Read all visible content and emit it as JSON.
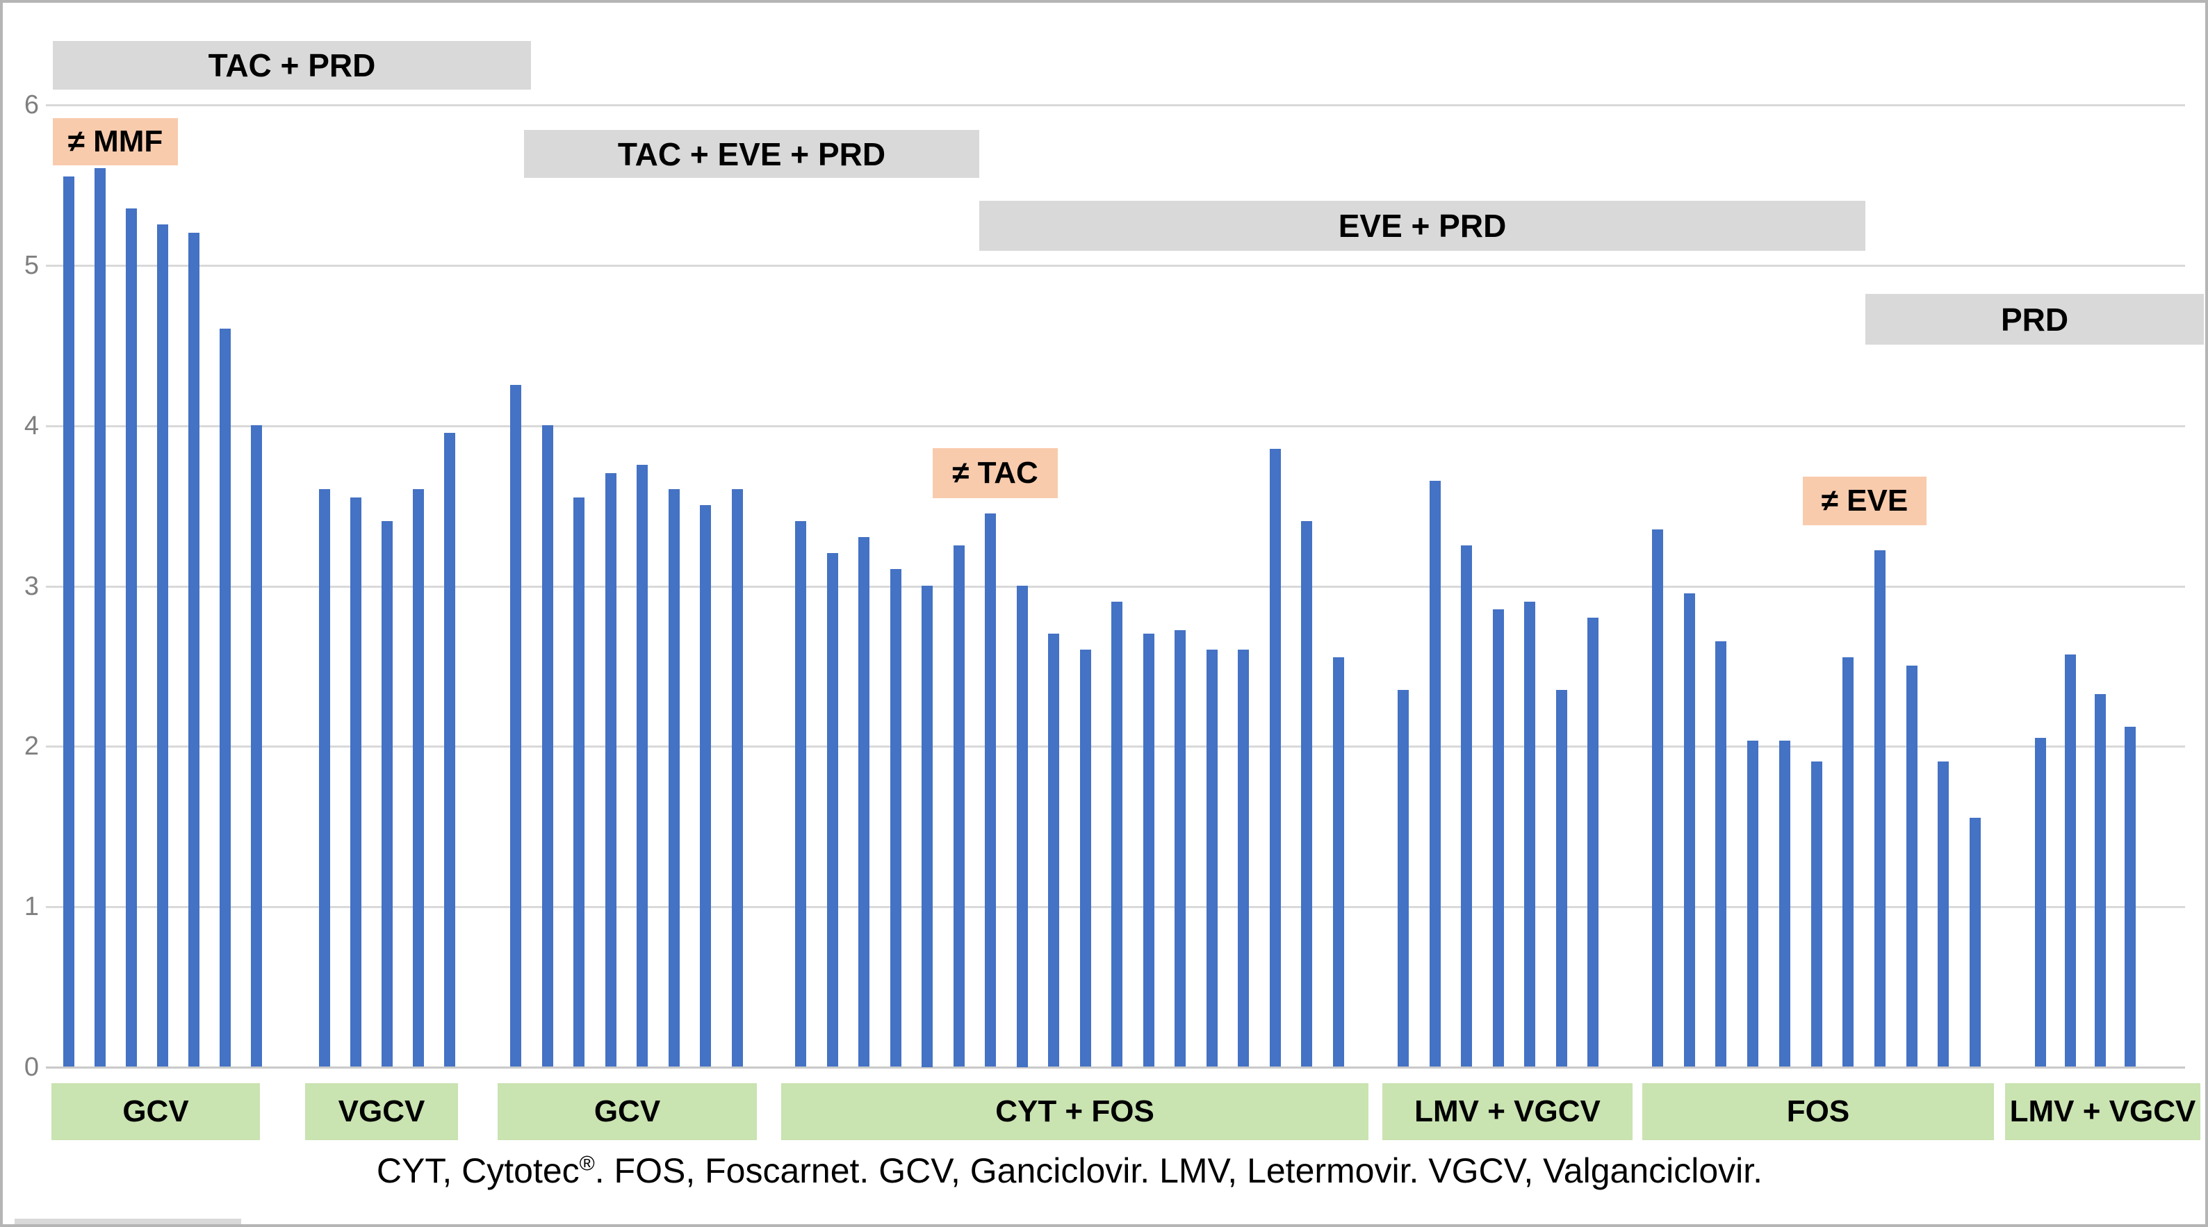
{
  "colors": {
    "bar": "#4472c4",
    "group_box": "#c9e3b1",
    "period_box": "#d9d9d9",
    "annotation_box": "#f8cbad",
    "gridline": "#d9d9d9",
    "axis_text": "#7f7f7f"
  },
  "chart_data": {
    "type": "bar",
    "title": "",
    "xlabel": "",
    "ylabel": "",
    "ylim": [
      0,
      6
    ],
    "yticks": [
      "6",
      "5",
      "4",
      "3",
      "2",
      "1",
      "0"
    ],
    "grid": true,
    "legend": "none",
    "bar_color": "#4472c4",
    "groups": [
      {
        "label": "GCV",
        "values": [
          5.55,
          5.6,
          5.35,
          5.25,
          5.2,
          4.6,
          4.0
        ]
      },
      {
        "label": "VGCV",
        "values": [
          3.6,
          3.55,
          3.4,
          3.6,
          3.95
        ]
      },
      {
        "label": "GCV",
        "values": [
          4.25,
          4.0,
          3.55,
          3.7,
          3.75,
          3.6,
          3.5,
          3.6
        ]
      },
      {
        "label": "CYT + FOS",
        "values": [
          3.4,
          3.2,
          3.3,
          3.1,
          3.0,
          3.25,
          3.45,
          3.0,
          2.7,
          2.6,
          2.9,
          2.7,
          2.72,
          2.6,
          2.6,
          3.85,
          3.4,
          2.55
        ]
      },
      {
        "label": "LMV + VGCV",
        "values": [
          2.35,
          3.65,
          3.25,
          2.85,
          2.9,
          2.35,
          2.8
        ]
      },
      {
        "label": "FOS",
        "values": [
          3.35,
          2.95,
          2.65,
          2.03,
          2.03,
          1.9,
          2.55,
          3.22,
          2.5,
          1.9,
          1.55
        ]
      },
      {
        "label": "LMV + VGCV",
        "values": [
          2.05,
          2.57,
          2.32,
          2.12
        ]
      }
    ],
    "immunosuppression_timeline": [
      {
        "label": "TAC + PRD"
      },
      {
        "label": "TAC + EVE + PRD"
      },
      {
        "label": "EVE + PRD"
      },
      {
        "label": "PRD"
      }
    ],
    "annotations": [
      {
        "label": "≠ MMF"
      },
      {
        "label": "≠ TAC"
      },
      {
        "label": "≠ EVE"
      }
    ]
  },
  "footnote": {
    "prefix": "CYT, Cytotec",
    "sup": "®",
    "suffix": ". FOS, Foscarnet. GCV, Ganciclovir. LMV, Letermovir. VGCV, Valganciclovir."
  }
}
